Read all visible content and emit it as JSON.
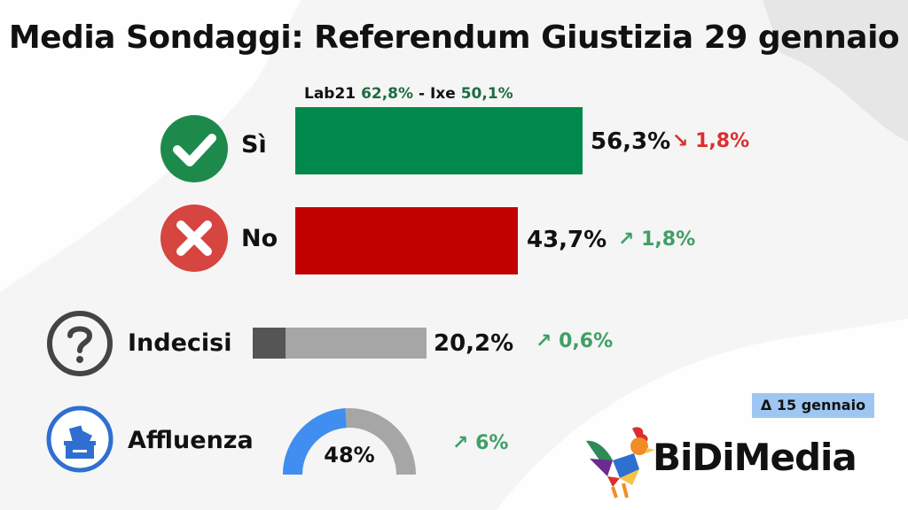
{
  "title": "Media Sondaggi: Referendum Giustizia 29 gennaio",
  "note": {
    "label1": "Lab21",
    "value1": "62,8%",
    "sep": " - ",
    "label2": "Ixe",
    "value2": "50,1%"
  },
  "comparison_badge": "Δ 15 gennaio",
  "brand": "BiDiMedia",
  "rows": [
    {
      "label": "Sì",
      "value_text": "56,3%",
      "delta_text": "↘ 1,8%",
      "color": "#00894a"
    },
    {
      "label": "No",
      "value_text": "43,7%",
      "delta_text": "↗ 1,8%",
      "color": "#c10000"
    },
    {
      "label": "Indecisi",
      "value_text": "20,2%",
      "delta_text": "↗ 0,6%",
      "color": "#a6a6a6"
    },
    {
      "label": "Affluenza",
      "value_text": "48%",
      "delta_text": "↗ 6%",
      "color": "#3f8ef0"
    }
  ],
  "icons": {
    "si": "check-circle-icon",
    "no": "x-circle-icon",
    "indecisi": "question-circle-icon",
    "affluenza": "ballot-box-icon",
    "logo": "rooster-logo-icon"
  },
  "chart_data": {
    "type": "bar",
    "title": "Media Sondaggi: Referendum Giustizia 29 gennaio",
    "categories": [
      "Sì",
      "No",
      "Indecisi"
    ],
    "values": [
      56.3,
      43.7,
      20.2
    ],
    "changes": [
      -1.8,
      1.8,
      0.6
    ],
    "turnout": {
      "label": "Affluenza",
      "value": 48,
      "change": 6
    },
    "units": "%",
    "colors": [
      "#00894a",
      "#c10000",
      "#a6a6a6"
    ],
    "comparison_date": "15 gennaio"
  }
}
